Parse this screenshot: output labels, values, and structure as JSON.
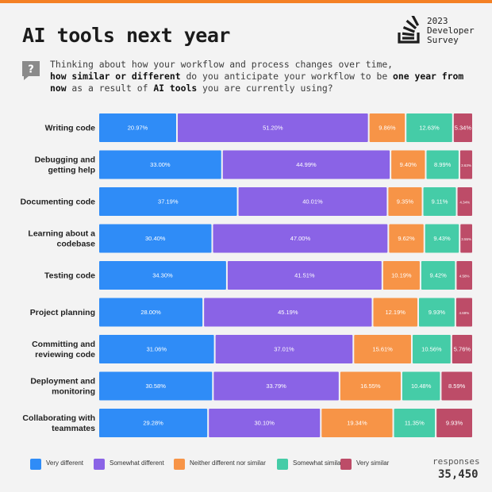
{
  "header": {
    "title": "AI tools next year",
    "brand_year": "2023",
    "brand_line1": "Developer",
    "brand_line2": "Survey"
  },
  "question": {
    "part1": "Thinking about how your workflow and process changes over time,",
    "part2_bold": "how similar or different",
    "part3": " do you anticipate your workflow to be ",
    "part4_bold": "one year from now",
    "part5": " as a result of ",
    "part6_bold": "AI tools",
    "part7": " you are currently using?"
  },
  "footer": {
    "responses_label": "responses",
    "responses_value": "35,450"
  },
  "colors": {
    "very_different": "#2f8cf7",
    "somewhat_different": "#8a63e6",
    "neither": "#f79447",
    "somewhat_similar": "#45cca7",
    "very_similar": "#bd4c68"
  },
  "chart_data": {
    "type": "bar",
    "orientation": "horizontal",
    "stacked": true,
    "normalized": true,
    "categories": [
      [
        "Writing code"
      ],
      [
        "Debugging and",
        "getting help"
      ],
      [
        "Documenting code"
      ],
      [
        "Learning about a",
        "codebase"
      ],
      [
        "Testing code"
      ],
      [
        "Project planning"
      ],
      [
        "Committing and",
        "reviewing code"
      ],
      [
        "Deployment and",
        "monitoring"
      ],
      [
        "Collaborating with",
        "teammates"
      ]
    ],
    "series": [
      {
        "name": "Very different",
        "color": "#2f8cf7",
        "values": [
          20.97,
          33.0,
          37.19,
          30.4,
          34.3,
          28.0,
          31.06,
          30.58,
          29.28
        ],
        "labels": [
          "20.97%",
          "33.00%",
          "37.19%",
          "30.40%",
          "34.30%",
          "28.00%",
          "31.06%",
          "30.58%",
          "29.28%"
        ]
      },
      {
        "name": "Somewhat different",
        "color": "#8a63e6",
        "values": [
          51.2,
          44.99,
          40.01,
          47.0,
          41.51,
          45.19,
          37.01,
          33.79,
          30.1
        ],
        "labels": [
          "51.20%",
          "44.99%",
          "40.01%",
          "47.00%",
          "41.51%",
          "45.19%",
          "37.01%",
          "33.79%",
          "30.10%"
        ]
      },
      {
        "name": "Neither different nor similar",
        "color": "#f79447",
        "values": [
          9.86,
          9.4,
          9.35,
          9.62,
          10.19,
          12.19,
          15.61,
          16.55,
          19.34
        ],
        "labels": [
          "9.86%",
          "9.40%",
          "9.35%",
          "9.62%",
          "10.19%",
          "12.19%",
          "15.61%",
          "16.55%",
          "19.34%"
        ]
      },
      {
        "name": "Somewhat similar",
        "color": "#45cca7",
        "values": [
          12.63,
          8.99,
          9.11,
          9.43,
          9.42,
          9.93,
          10.56,
          10.48,
          11.35
        ],
        "labels": [
          "12.63%",
          "8.99%",
          "9.11%",
          "9.43%",
          "9.42%",
          "9.93%",
          "10.56%",
          "10.48%",
          "11.35%"
        ]
      },
      {
        "name": "Very similar",
        "color": "#bd4c68",
        "values": [
          5.34,
          3.63,
          4.34,
          3.55,
          4.58,
          4.69,
          5.76,
          8.59,
          9.93
        ],
        "labels": [
          "5.34%",
          "3.63%",
          "4.34%",
          "3.55%",
          "4.58%",
          "4.69%",
          "5.76%",
          "8.59%",
          "9.93%"
        ]
      }
    ],
    "xlim": [
      0,
      100
    ],
    "legend_position": "bottom",
    "grid": false
  }
}
